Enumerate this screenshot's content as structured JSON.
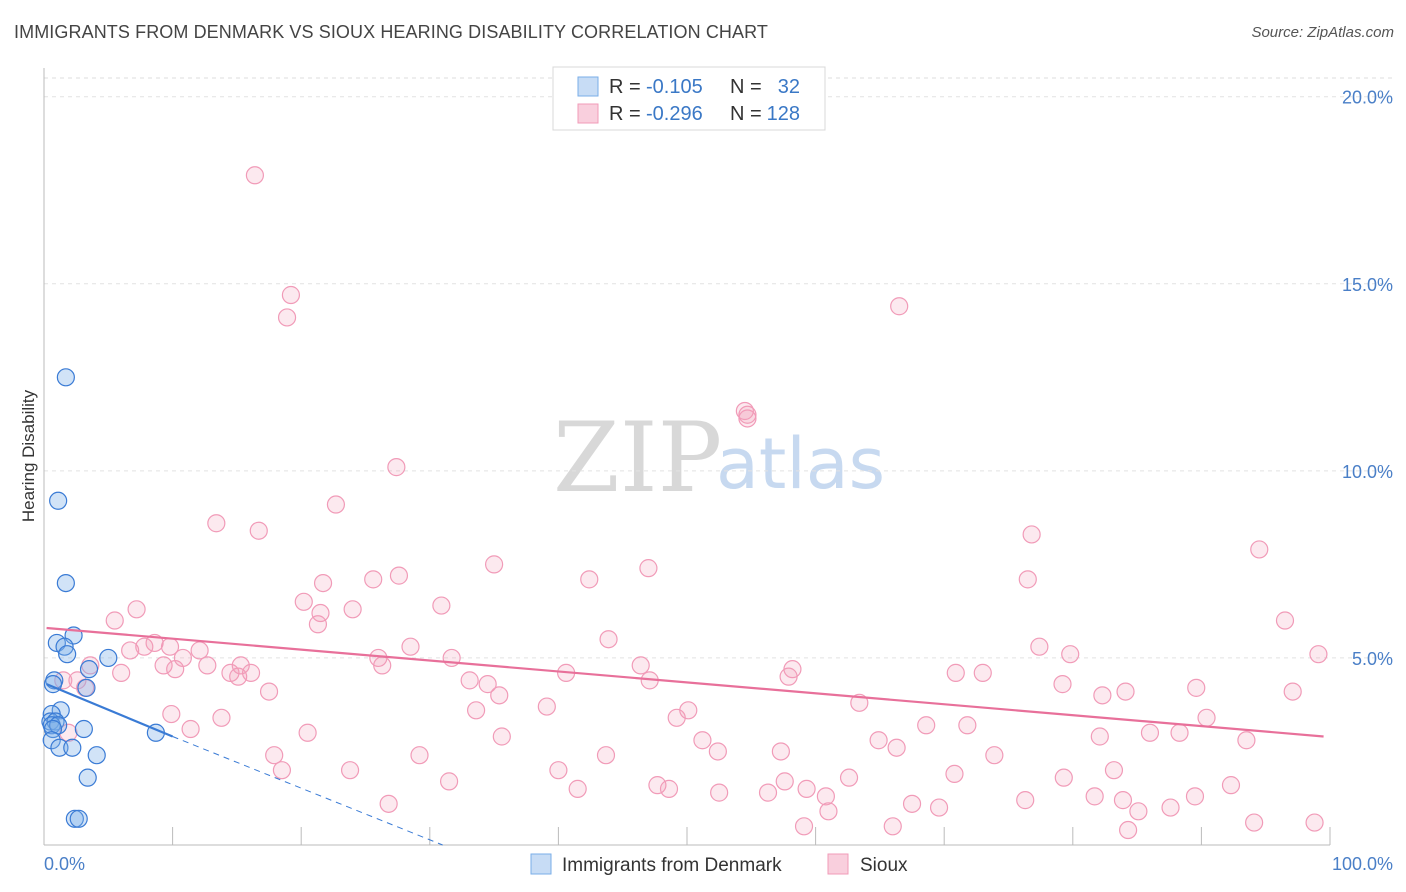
{
  "title": "IMMIGRANTS FROM DENMARK VS SIOUX HEARING DISABILITY CORRELATION CHART",
  "source": "Source: ZipAtlas.com",
  "watermark": {
    "zip": "ZIP",
    "atlas": "atlas"
  },
  "legend": {
    "rows": [
      {
        "r_label": "R =",
        "r_value": "-0.105",
        "n_label": "N =",
        "n_value": "32"
      },
      {
        "r_label": "R =",
        "r_value": "-0.296",
        "n_label": "N =",
        "n_value": "128"
      }
    ]
  },
  "bottom_legend": [
    "Immigrants from Denmark",
    "Sioux"
  ],
  "chart_data": {
    "type": "scatter",
    "title": "IMMIGRANTS FROM DENMARK VS SIOUX HEARING DISABILITY CORRELATION CHART",
    "xlabel": "",
    "ylabel": "Hearing Disability",
    "xlim": [
      0,
      100
    ],
    "ylim": [
      0,
      20.5
    ],
    "x_tick_labels": [
      "0.0%",
      "100.0%"
    ],
    "y_ticks": [
      5,
      10,
      15,
      20
    ],
    "y_tick_labels": [
      "5.0%",
      "10.0%",
      "15.0%",
      "20.0%"
    ],
    "grid": true,
    "colors": {
      "denmark": "#7aaee8",
      "denmark_line": "#3a7bd5",
      "sioux": "#f19bb8",
      "sioux_line": "#e8709a"
    },
    "series": [
      {
        "name": "Immigrants from Denmark",
        "r": -0.105,
        "n": 32,
        "trend": {
          "x0": 0.2,
          "y0": 4.3,
          "x1": 10.0,
          "y1": 2.9,
          "dash_to_x": 31.0,
          "dash_to_y": 0.0
        },
        "points": [
          [
            1.7,
            12.5
          ],
          [
            1.1,
            9.2
          ],
          [
            1.7,
            7.0
          ],
          [
            2.3,
            5.6
          ],
          [
            1.0,
            5.4
          ],
          [
            1.6,
            5.3
          ],
          [
            1.8,
            5.1
          ],
          [
            5.0,
            5.0
          ],
          [
            0.8,
            4.4
          ],
          [
            3.5,
            4.7
          ],
          [
            0.7,
            4.3
          ],
          [
            3.3,
            4.2
          ],
          [
            1.3,
            3.6
          ],
          [
            0.6,
            3.5
          ],
          [
            0.5,
            3.3
          ],
          [
            0.9,
            3.3
          ],
          [
            0.6,
            3.2
          ],
          [
            1.1,
            3.2
          ],
          [
            0.7,
            3.1
          ],
          [
            3.1,
            3.1
          ],
          [
            8.7,
            3.0
          ],
          [
            0.6,
            2.8
          ],
          [
            1.2,
            2.6
          ],
          [
            2.2,
            2.6
          ],
          [
            4.1,
            2.4
          ],
          [
            3.4,
            1.8
          ],
          [
            2.4,
            0.7
          ],
          [
            2.7,
            0.7
          ]
        ]
      },
      {
        "name": "Sioux",
        "r": -0.296,
        "n": 128,
        "trend": {
          "x0": 0.2,
          "y0": 5.8,
          "x1": 99.5,
          "y1": 2.9
        },
        "points": [
          [
            16.4,
            17.9
          ],
          [
            19.2,
            14.7
          ],
          [
            18.9,
            14.1
          ],
          [
            66.5,
            14.4
          ],
          [
            54.7,
            11.5
          ],
          [
            54.5,
            11.6
          ],
          [
            54.7,
            11.4
          ],
          [
            27.4,
            10.1
          ],
          [
            76.8,
            8.3
          ],
          [
            13.4,
            8.6
          ],
          [
            16.7,
            8.4
          ],
          [
            22.7,
            9.1
          ],
          [
            1.5,
            4.4
          ],
          [
            3.2,
            4.2
          ],
          [
            3.6,
            4.8
          ],
          [
            6.0,
            4.6
          ],
          [
            6.7,
            5.2
          ],
          [
            7.8,
            5.3
          ],
          [
            8.6,
            5.4
          ],
          [
            9.3,
            4.8
          ],
          [
            9.8,
            5.3
          ],
          [
            10.2,
            4.7
          ],
          [
            12.7,
            4.8
          ],
          [
            14.5,
            4.6
          ],
          [
            15.1,
            4.5
          ],
          [
            16.1,
            4.6
          ],
          [
            17.5,
            4.1
          ],
          [
            20.2,
            6.5
          ],
          [
            21.5,
            6.2
          ],
          [
            21.3,
            5.9
          ],
          [
            21.7,
            7.0
          ],
          [
            24.0,
            6.3
          ],
          [
            25.6,
            7.1
          ],
          [
            26.0,
            5.0
          ],
          [
            26.3,
            4.8
          ],
          [
            27.6,
            7.2
          ],
          [
            28.5,
            5.3
          ],
          [
            30.9,
            6.4
          ],
          [
            31.7,
            5.0
          ],
          [
            33.1,
            4.4
          ],
          [
            33.6,
            3.6
          ],
          [
            34.5,
            4.3
          ],
          [
            35.4,
            4.0
          ],
          [
            35.6,
            2.9
          ],
          [
            35.0,
            7.5
          ],
          [
            39.1,
            3.7
          ],
          [
            40.6,
            4.6
          ],
          [
            42.4,
            7.1
          ],
          [
            43.9,
            5.5
          ],
          [
            47.0,
            7.4
          ],
          [
            46.4,
            4.8
          ],
          [
            47.1,
            4.4
          ],
          [
            49.2,
            3.4
          ],
          [
            50.1,
            3.6
          ],
          [
            51.2,
            2.8
          ],
          [
            52.4,
            2.5
          ],
          [
            57.3,
            2.5
          ],
          [
            57.9,
            4.5
          ],
          [
            58.2,
            4.7
          ],
          [
            63.4,
            3.8
          ],
          [
            66.3,
            2.6
          ],
          [
            68.6,
            3.2
          ],
          [
            71.8,
            3.2
          ],
          [
            70.9,
            4.6
          ],
          [
            73.0,
            4.6
          ],
          [
            76.5,
            7.1
          ],
          [
            77.4,
            5.3
          ],
          [
            79.2,
            4.3
          ],
          [
            79.8,
            5.1
          ],
          [
            82.3,
            4.0
          ],
          [
            82.1,
            2.9
          ],
          [
            83.2,
            2.0
          ],
          [
            84.1,
            4.1
          ],
          [
            86.0,
            3.0
          ],
          [
            88.3,
            3.0
          ],
          [
            89.6,
            4.2
          ],
          [
            90.4,
            3.4
          ],
          [
            94.5,
            7.9
          ],
          [
            96.5,
            6.0
          ],
          [
            97.1,
            4.1
          ],
          [
            99.1,
            5.1
          ],
          [
            93.5,
            2.8
          ],
          [
            1.9,
            3.0
          ],
          [
            2.6,
            4.4
          ],
          [
            5.5,
            6.0
          ],
          [
            7.2,
            6.3
          ],
          [
            9.9,
            3.5
          ],
          [
            11.4,
            3.1
          ],
          [
            10.8,
            5.0
          ],
          [
            12.1,
            5.2
          ],
          [
            13.8,
            3.4
          ],
          [
            15.3,
            4.8
          ],
          [
            17.9,
            2.4
          ],
          [
            18.5,
            2.0
          ],
          [
            20.5,
            3.0
          ],
          [
            23.8,
            2.0
          ],
          [
            26.8,
            1.1
          ],
          [
            29.2,
            2.4
          ],
          [
            31.5,
            1.7
          ],
          [
            40.0,
            2.0
          ],
          [
            41.5,
            1.5
          ],
          [
            43.7,
            2.4
          ],
          [
            47.7,
            1.6
          ],
          [
            48.6,
            1.5
          ],
          [
            52.5,
            1.4
          ],
          [
            56.3,
            1.4
          ],
          [
            57.6,
            1.7
          ],
          [
            59.3,
            1.5
          ],
          [
            60.8,
            1.3
          ],
          [
            61.0,
            0.9
          ],
          [
            62.6,
            1.8
          ],
          [
            64.9,
            2.8
          ],
          [
            66.0,
            0.5
          ],
          [
            67.5,
            1.1
          ],
          [
            69.6,
            1.0
          ],
          [
            70.8,
            1.9
          ],
          [
            73.9,
            2.4
          ],
          [
            76.3,
            1.2
          ],
          [
            79.3,
            1.8
          ],
          [
            81.7,
            1.3
          ],
          [
            83.9,
            1.2
          ],
          [
            85.1,
            0.9
          ],
          [
            87.6,
            1.0
          ],
          [
            89.5,
            1.3
          ],
          [
            92.3,
            1.6
          ],
          [
            94.1,
            0.6
          ],
          [
            98.8,
            0.6
          ],
          [
            84.3,
            0.4
          ],
          [
            59.1,
            0.5
          ]
        ]
      }
    ]
  }
}
